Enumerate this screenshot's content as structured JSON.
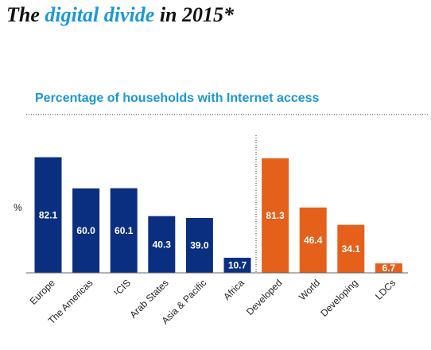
{
  "chart_data": {
    "type": "bar",
    "title": {
      "before": "The",
      "highlight": "digital divide",
      "after": "in 2015*"
    },
    "subtitle": "Percentage of households with Internet access",
    "y_label": "%",
    "categories": [
      "Europe",
      "The Americas",
      "¹CIS",
      "Arab States",
      "Asia & Pacific",
      "Africa",
      "Developed",
      "World",
      "Developing",
      "LDCs"
    ],
    "values": [
      82.1,
      60.0,
      60.1,
      40.3,
      39.0,
      10.7,
      81.3,
      46.4,
      34.1,
      6.7
    ],
    "value_labels": [
      "82.1",
      "60.0",
      "60.1",
      "40.3",
      "39.0",
      "10.7",
      "81.3",
      "46.4",
      "34.1",
      "6.7"
    ],
    "colors": [
      "#0b2f80",
      "#0b2f80",
      "#0b2f80",
      "#0b2f80",
      "#0b2f80",
      "#0b2f80",
      "#e4601b",
      "#e4601b",
      "#e4601b",
      "#e4601b"
    ],
    "ylim": [
      0,
      100
    ]
  }
}
